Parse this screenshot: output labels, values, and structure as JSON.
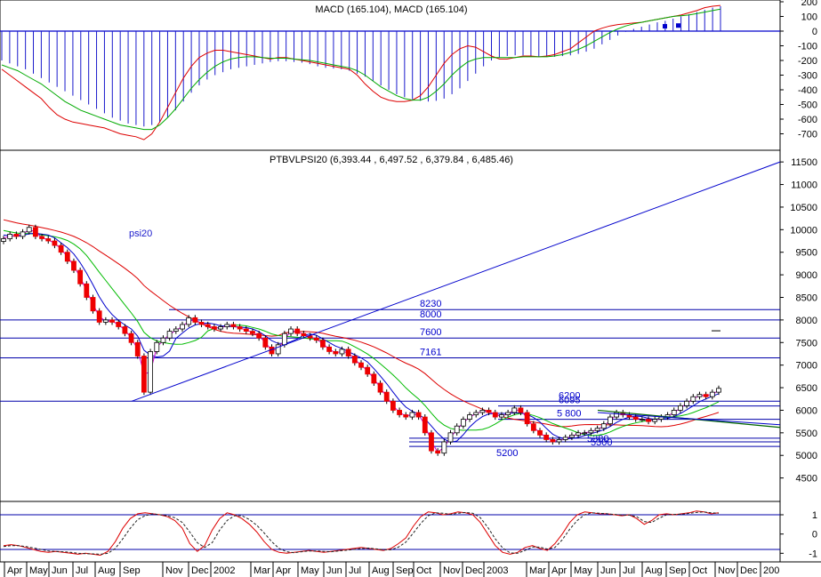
{
  "chart_data": [
    {
      "type": "bar",
      "title": "MACD (165.104), MACD (165.104)",
      "ylim": [
        -800,
        200
      ],
      "yticks": [
        200,
        100,
        0,
        -100,
        -200,
        -300,
        -400,
        -500,
        -600,
        -700
      ],
      "histogram": [
        -200,
        -220,
        -240,
        -260,
        -290,
        -320,
        -350,
        -380,
        -410,
        -440,
        -470,
        -500,
        -530,
        -560,
        -590,
        -610,
        -630,
        -640,
        -650,
        -640,
        -620,
        -590,
        -540,
        -480,
        -420,
        -370,
        -330,
        -300,
        -280,
        -260,
        -250,
        -240,
        -230,
        -220,
        -210,
        -205,
        -205,
        -210,
        -215,
        -225,
        -240,
        -250,
        -255,
        -260,
        -270,
        -290,
        -310,
        -340,
        -370,
        -400,
        -430,
        -450,
        -465,
        -475,
        -480,
        -475,
        -460,
        -430,
        -390,
        -340,
        -290,
        -240,
        -200,
        -180,
        -170,
        -165,
        -165,
        -170,
        -175,
        -175,
        -175,
        -170,
        -165,
        -155,
        -140,
        -120,
        -90,
        -60,
        -30,
        -5,
        15,
        30,
        45,
        60,
        70,
        85,
        100,
        115,
        130,
        145,
        160,
        170
      ],
      "series": [
        {
          "name": "",
          "color": "#dd0000",
          "values": [
            -260,
            -300,
            -340,
            -380,
            -420,
            -460,
            -520,
            -570,
            -600,
            -620,
            -630,
            -640,
            -650,
            -660,
            -680,
            -700,
            -710,
            -720,
            -740,
            -700,
            -620,
            -520,
            -420,
            -320,
            -240,
            -180,
            -150,
            -130,
            -130,
            -140,
            -150,
            -160,
            -170,
            -180,
            -190,
            -180,
            -180,
            -190,
            -200,
            -210,
            -220,
            -230,
            -240,
            -250,
            -260,
            -300,
            -360,
            -410,
            -450,
            -470,
            -480,
            -480,
            -470,
            -440,
            -380,
            -300,
            -220,
            -160,
            -120,
            -100,
            -110,
            -140,
            -170,
            -190,
            -190,
            -180,
            -170,
            -170,
            -175,
            -170,
            -160,
            -140,
            -120,
            -80,
            -40,
            0,
            20,
            35,
            45,
            50,
            55,
            60,
            70,
            80,
            90,
            100,
            110,
            125,
            140,
            160,
            170,
            175
          ]
        },
        {
          "name": "",
          "color": "#00aa00",
          "values": [
            -230,
            -250,
            -270,
            -300,
            -330,
            -360,
            -400,
            -440,
            -480,
            -510,
            -540,
            -560,
            -580,
            -600,
            -620,
            -640,
            -650,
            -660,
            -670,
            -670,
            -640,
            -590,
            -530,
            -460,
            -390,
            -330,
            -280,
            -240,
            -210,
            -190,
            -180,
            -175,
            -175,
            -180,
            -185,
            -185,
            -185,
            -190,
            -195,
            -200,
            -210,
            -220,
            -230,
            -240,
            -250,
            -270,
            -300,
            -340,
            -380,
            -410,
            -440,
            -460,
            -470,
            -470,
            -450,
            -410,
            -360,
            -300,
            -250,
            -210,
            -190,
            -180,
            -180,
            -180,
            -180,
            -180,
            -175,
            -175,
            -175,
            -175,
            -170,
            -160,
            -145,
            -125,
            -100,
            -70,
            -40,
            -10,
            15,
            35,
            50,
            60,
            70,
            80,
            90,
            100,
            105,
            110,
            120,
            130,
            140,
            150
          ]
        }
      ]
    },
    {
      "type": "candlestick",
      "title": "PTBVLPSI20 (6,393.44 , 6,497.52 , 6,379.84 , 6,485.46)",
      "ylim": [
        4000,
        11700
      ],
      "yticks": [
        11500,
        11000,
        10500,
        10000,
        9500,
        9000,
        8500,
        8000,
        7500,
        7000,
        6500,
        6000,
        5500,
        5000,
        4500
      ],
      "annotation": "psi20",
      "levels": [
        {
          "label": "8230",
          "value": 8230
        },
        {
          "label": "8000",
          "value": 8000
        },
        {
          "label": "7600",
          "value": 7600
        },
        {
          "label": "7161",
          "value": 7161
        },
        {
          "label": "6200",
          "value": 6200
        },
        {
          "label": "6095",
          "value": 6095
        },
        {
          "label": "5 800",
          "value": 5800
        },
        {
          "label": "5380",
          "value": 5380
        },
        {
          "label": "5300",
          "value": 5300
        },
        {
          "label": "5200",
          "value": 5200
        }
      ],
      "close": [
        9800,
        9900,
        9850,
        9950,
        10050,
        9850,
        9800,
        9750,
        9650,
        9500,
        9300,
        9100,
        8800,
        8500,
        8200,
        7950,
        8000,
        7950,
        7850,
        7700,
        7500,
        7200,
        6400,
        7300,
        7500,
        7600,
        7750,
        7800,
        7900,
        8050,
        7950,
        7900,
        7850,
        7800,
        7850,
        7900,
        7850,
        7800,
        7750,
        7700,
        7600,
        7400,
        7250,
        7450,
        7700,
        7800,
        7700,
        7650,
        7600,
        7550,
        7400,
        7300,
        7250,
        7350,
        7200,
        7050,
        6950,
        6800,
        6600,
        6400,
        6200,
        6000,
        5900,
        5850,
        5950,
        5850,
        5500,
        5100,
        5050,
        5300,
        5500,
        5650,
        5800,
        5900,
        5950,
        6000,
        5950,
        5850,
        5900,
        5950,
        6050,
        5950,
        5700,
        5550,
        5450,
        5350,
        5300,
        5350,
        5400,
        5450,
        5500,
        5500,
        5550,
        5600,
        5700,
        5850,
        5950,
        5900,
        5850,
        5800,
        5800,
        5750,
        5800,
        5850,
        5900,
        6000,
        6100,
        6200,
        6300,
        6350,
        6300,
        6400,
        6485
      ]
    },
    {
      "type": "line",
      "ylim": [
        -1.4,
        1.6
      ],
      "yticks": [
        1,
        0,
        -1
      ],
      "levels": [
        1,
        -0.8
      ],
      "series": [
        {
          "name": "",
          "color": "#dd0000",
          "values": [
            -0.6,
            -0.55,
            -0.6,
            -0.7,
            -0.8,
            -0.9,
            -0.95,
            -0.9,
            -0.95,
            -1.0,
            -1.05,
            -1.0,
            -1.05,
            -1.1,
            -0.9,
            -0.4,
            0.3,
            0.8,
            1.05,
            1.1,
            1.05,
            1.0,
            0.9,
            0.7,
            0.3,
            -0.5,
            -0.9,
            -0.6,
            0.2,
            0.8,
            1.1,
            1.0,
            0.8,
            0.5,
            0.1,
            -0.4,
            -0.8,
            -0.95,
            -1.0,
            -0.95,
            -0.9,
            -0.85,
            -0.9,
            -0.95,
            -0.9,
            -0.85,
            -0.8,
            -0.75,
            -0.7,
            -0.75,
            -0.8,
            -0.85,
            -0.75,
            -0.5,
            -0.2,
            0.4,
            0.9,
            1.15,
            1.1,
            1.0,
            1.05,
            1.15,
            1.1,
            1.0,
            0.6,
            0.0,
            -0.6,
            -0.95,
            -1.05,
            -0.95,
            -0.7,
            -0.6,
            -0.75,
            -0.85,
            -0.5,
            0.0,
            0.6,
            1.0,
            1.15,
            1.1,
            1.05,
            1.05,
            1.0,
            0.95,
            1.0,
            0.8,
            0.5,
            0.7,
            1.0,
            1.05,
            1.0,
            1.05,
            1.1,
            1.2,
            1.15,
            1.05,
            1.1
          ]
        },
        {
          "name": "",
          "color": "#222222",
          "values": [
            -0.65,
            -0.6,
            -0.6,
            -0.65,
            -0.72,
            -0.8,
            -0.88,
            -0.9,
            -0.92,
            -0.95,
            -1.0,
            -1.02,
            -1.03,
            -1.05,
            -1.0,
            -0.75,
            -0.25,
            0.3,
            0.75,
            0.95,
            1.05,
            1.0,
            0.95,
            0.85,
            0.6,
            0.1,
            -0.45,
            -0.7,
            -0.45,
            0.2,
            0.7,
            0.95,
            0.95,
            0.75,
            0.45,
            0.05,
            -0.4,
            -0.75,
            -0.92,
            -0.97,
            -0.92,
            -0.88,
            -0.88,
            -0.9,
            -0.92,
            -0.88,
            -0.84,
            -0.8,
            -0.75,
            -0.73,
            -0.77,
            -0.82,
            -0.82,
            -0.68,
            -0.42,
            0.05,
            0.55,
            0.95,
            1.1,
            1.08,
            1.02,
            1.08,
            1.12,
            1.08,
            0.85,
            0.35,
            -0.25,
            -0.72,
            -0.98,
            -1.0,
            -0.85,
            -0.67,
            -0.68,
            -0.78,
            -0.7,
            -0.3,
            0.25,
            0.7,
            1.0,
            1.1,
            1.08,
            1.05,
            1.02,
            0.98,
            0.98,
            0.9,
            0.65,
            0.6,
            0.82,
            1.0,
            1.02,
            1.03,
            1.07,
            1.12,
            1.15,
            1.1,
            1.08
          ]
        }
      ]
    }
  ],
  "x_axis": {
    "labels": [
      "Apr",
      "May",
      "Jun",
      "Jul",
      "Aug",
      "Sep",
      "Nov",
      "Dec",
      "2002",
      "Mar",
      "Apr",
      "May",
      "Jun",
      "Jul",
      "Aug",
      "Sep",
      "Oct",
      "Nov",
      "Dec",
      "2003",
      "Mar",
      "Apr",
      "May",
      "Jun",
      "Jul",
      "Aug",
      "Sep",
      "Oct",
      "Nov",
      "Dec",
      "200"
    ]
  }
}
